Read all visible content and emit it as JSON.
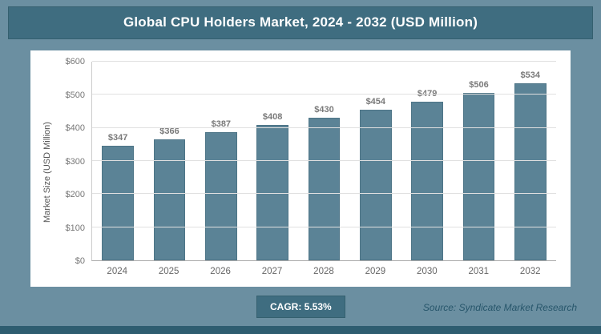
{
  "title": "Global CPU Holders Market, 2024 - 2032 (USD Million)",
  "footer": {
    "cagr_label": "CAGR: 5.53%",
    "source": "Source: Syndicate Market Research"
  },
  "colors": {
    "background": "#6b8fa1",
    "title_bar": "#3f6d80",
    "bar_fill": "#5b8396",
    "bottom_strip": "#2e5d70"
  },
  "chart_data": {
    "type": "bar",
    "title": "Global CPU Holders Market, 2024 - 2032 (USD Million)",
    "categories": [
      "2024",
      "2025",
      "2026",
      "2027",
      "2028",
      "2029",
      "2030",
      "2031",
      "2032"
    ],
    "values": [
      347,
      366,
      387,
      408,
      430,
      454,
      479,
      506,
      534
    ],
    "value_labels": [
      "$347",
      "$366",
      "$387",
      "$408",
      "$430",
      "$454",
      "$479",
      "$506",
      "$534"
    ],
    "xlabel": "",
    "ylabel": "Market Size (USD Million)",
    "ylim": [
      0,
      600
    ],
    "y_ticks": [
      0,
      100,
      200,
      300,
      400,
      500,
      600
    ],
    "y_tick_labels": [
      "$0",
      "$100",
      "$200",
      "$300",
      "$400",
      "$500",
      "$600"
    ],
    "grid": true,
    "legend": false
  }
}
